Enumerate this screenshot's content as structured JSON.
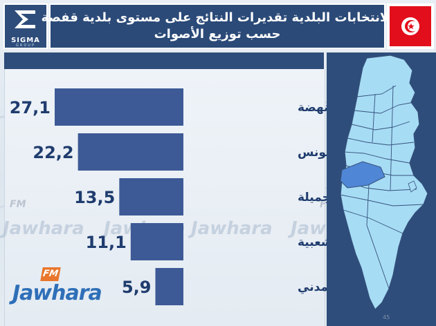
{
  "header": {
    "logo_text": "SIGMA",
    "logo_sub": "GROUP",
    "title_line1": "الانتخابات البلدية تقديرات النتائج على مستوى بلدية قفصة",
    "title_line2": "حسب توزيع الأصوات"
  },
  "chart_data": {
    "type": "bar",
    "orientation": "horizontal",
    "categories": [
      "حركة النهضة",
      "حركة نداء تونس",
      "قفصة الجميلة",
      "الجبهة الشعبية",
      "الإتحاد المدني"
    ],
    "values": [
      27.1,
      22.2,
      13.5,
      11.1,
      5.9
    ],
    "value_labels": [
      "27,1",
      "22,2",
      "13,5",
      "11,1",
      "5,9"
    ],
    "bar_color": "#3d5a96",
    "label_color": "#1f3c6e"
  },
  "watermark": {
    "text": "Jawhara",
    "fm": "FM"
  },
  "brand": {
    "fm": "FM",
    "name": "Jawhara"
  },
  "colors": {
    "header_bg": "#2b4a78",
    "map_fill": "#a7dcf5",
    "map_highlight": "#4f86d6",
    "flag_red": "#e20e1b"
  },
  "page_number": "45"
}
